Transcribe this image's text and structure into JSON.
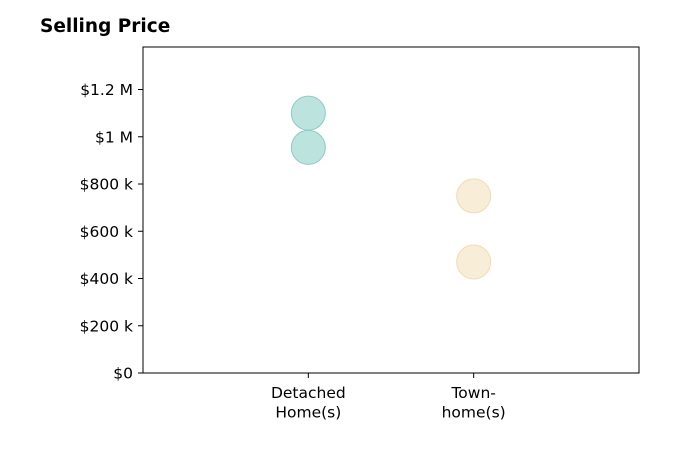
{
  "chart_data": {
    "type": "scatter",
    "title": "Selling Price",
    "xlabel": "",
    "ylabel": "",
    "categories": [
      "Detached Home(s)",
      "Town-home(s)"
    ],
    "category_lines": [
      [
        "Detached",
        "Home(s)"
      ],
      [
        "Town-",
        "home(s)"
      ]
    ],
    "xlim": [
      -1,
      2
    ],
    "ylim": [
      0,
      1380000
    ],
    "yticks": [
      0,
      200000,
      400000,
      600000,
      800000,
      1000000,
      1200000
    ],
    "ytick_labels": [
      "$0",
      "$200 k",
      "$400 k",
      "$600 k",
      "$800 k",
      "$1 M",
      "$1.2 M"
    ],
    "grid": false,
    "legend": "none",
    "series": [
      {
        "color": "#a3d8d3",
        "stroke": "#8ccbc5",
        "points": [
          {
            "x": "Detached Home(s)",
            "y": 1100000
          },
          {
            "x": "Detached Home(s)",
            "y": 955000
          }
        ]
      },
      {
        "color": "#f5e6c6",
        "stroke": "#efdcb4",
        "points": [
          {
            "x": "Town-home(s)",
            "y": 750000
          },
          {
            "x": "Town-home(s)",
            "y": 470000
          }
        ]
      }
    ]
  }
}
